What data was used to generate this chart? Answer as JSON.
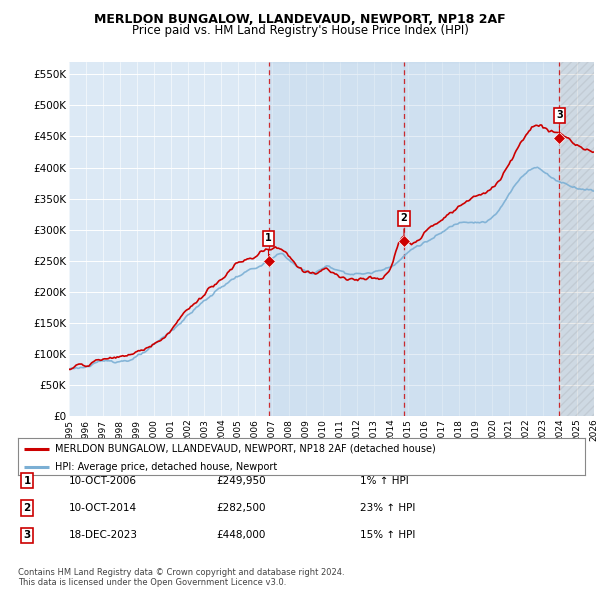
{
  "title": "MERLDON BUNGALOW, LLANDEVAUD, NEWPORT, NP18 2AF",
  "subtitle": "Price paid vs. HM Land Registry's House Price Index (HPI)",
  "ylim": [
    0,
    570000
  ],
  "yticks": [
    0,
    50000,
    100000,
    150000,
    200000,
    250000,
    300000,
    350000,
    400000,
    450000,
    500000,
    550000
  ],
  "ytick_labels": [
    "£0",
    "£50K",
    "£100K",
    "£150K",
    "£200K",
    "£250K",
    "£300K",
    "£350K",
    "£400K",
    "£450K",
    "£500K",
    "£550K"
  ],
  "hpi_color": "#7bafd4",
  "price_color": "#cc0000",
  "sale_marker_color": "#cc0000",
  "background_color": "#dce9f5",
  "shade_color": "#c8ddf0",
  "grid_color": "#ffffff",
  "xmin": 1995,
  "xmax": 2026,
  "sales": [
    {
      "date_num": 2006.78,
      "price": 249950,
      "label": "1"
    },
    {
      "date_num": 2014.78,
      "price": 282500,
      "label": "2"
    },
    {
      "date_num": 2023.96,
      "price": 448000,
      "label": "3"
    }
  ],
  "legend_entries": [
    "MERLDON BUNGALOW, LLANDEVAUD, NEWPORT, NP18 2AF (detached house)",
    "HPI: Average price, detached house, Newport"
  ],
  "table_rows": [
    [
      "1",
      "10-OCT-2006",
      "£249,950",
      "1% ↑ HPI"
    ],
    [
      "2",
      "10-OCT-2014",
      "£282,500",
      "23% ↑ HPI"
    ],
    [
      "3",
      "18-DEC-2023",
      "£448,000",
      "15% ↑ HPI"
    ]
  ],
  "footnote": "Contains HM Land Registry data © Crown copyright and database right 2024.\nThis data is licensed under the Open Government Licence v3.0.",
  "title_fontsize": 9,
  "subtitle_fontsize": 8.5
}
